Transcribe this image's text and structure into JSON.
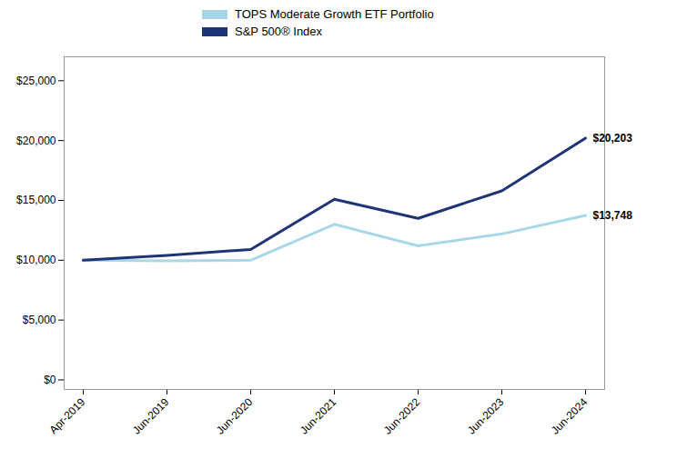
{
  "chart_data": {
    "type": "line",
    "categories": [
      "Apr-2019",
      "Jun-2019",
      "Jun-2020",
      "Jun-2021",
      "Jun-2022",
      "Jun-2023",
      "Jun-2024"
    ],
    "series": [
      {
        "name": "TOPS Moderate Growth ETF Portfolio",
        "color": "#a8d8e8",
        "values": [
          10000,
          9950,
          10000,
          13000,
          11200,
          12200,
          13748
        ]
      },
      {
        "name": "S&P 500® Index",
        "color": "#1f3478",
        "values": [
          10000,
          10400,
          10900,
          15100,
          13500,
          15800,
          20203
        ]
      }
    ],
    "ylim": [
      -800,
      27000
    ],
    "yticks": [
      {
        "value": 0,
        "label": "$0"
      },
      {
        "value": 5000,
        "label": "$5,000"
      },
      {
        "value": 10000,
        "label": "$10,000"
      },
      {
        "value": 15000,
        "label": "$15,000"
      },
      {
        "value": 20000,
        "label": "$20,000"
      },
      {
        "value": 25000,
        "label": "$25,000"
      }
    ],
    "annotations": [
      {
        "text": "$20,203",
        "x": "Jun-2024",
        "y": 20203
      },
      {
        "text": "$13,748",
        "x": "Jun-2024",
        "y": 13748
      }
    ],
    "legend": "top",
    "grid": false
  }
}
